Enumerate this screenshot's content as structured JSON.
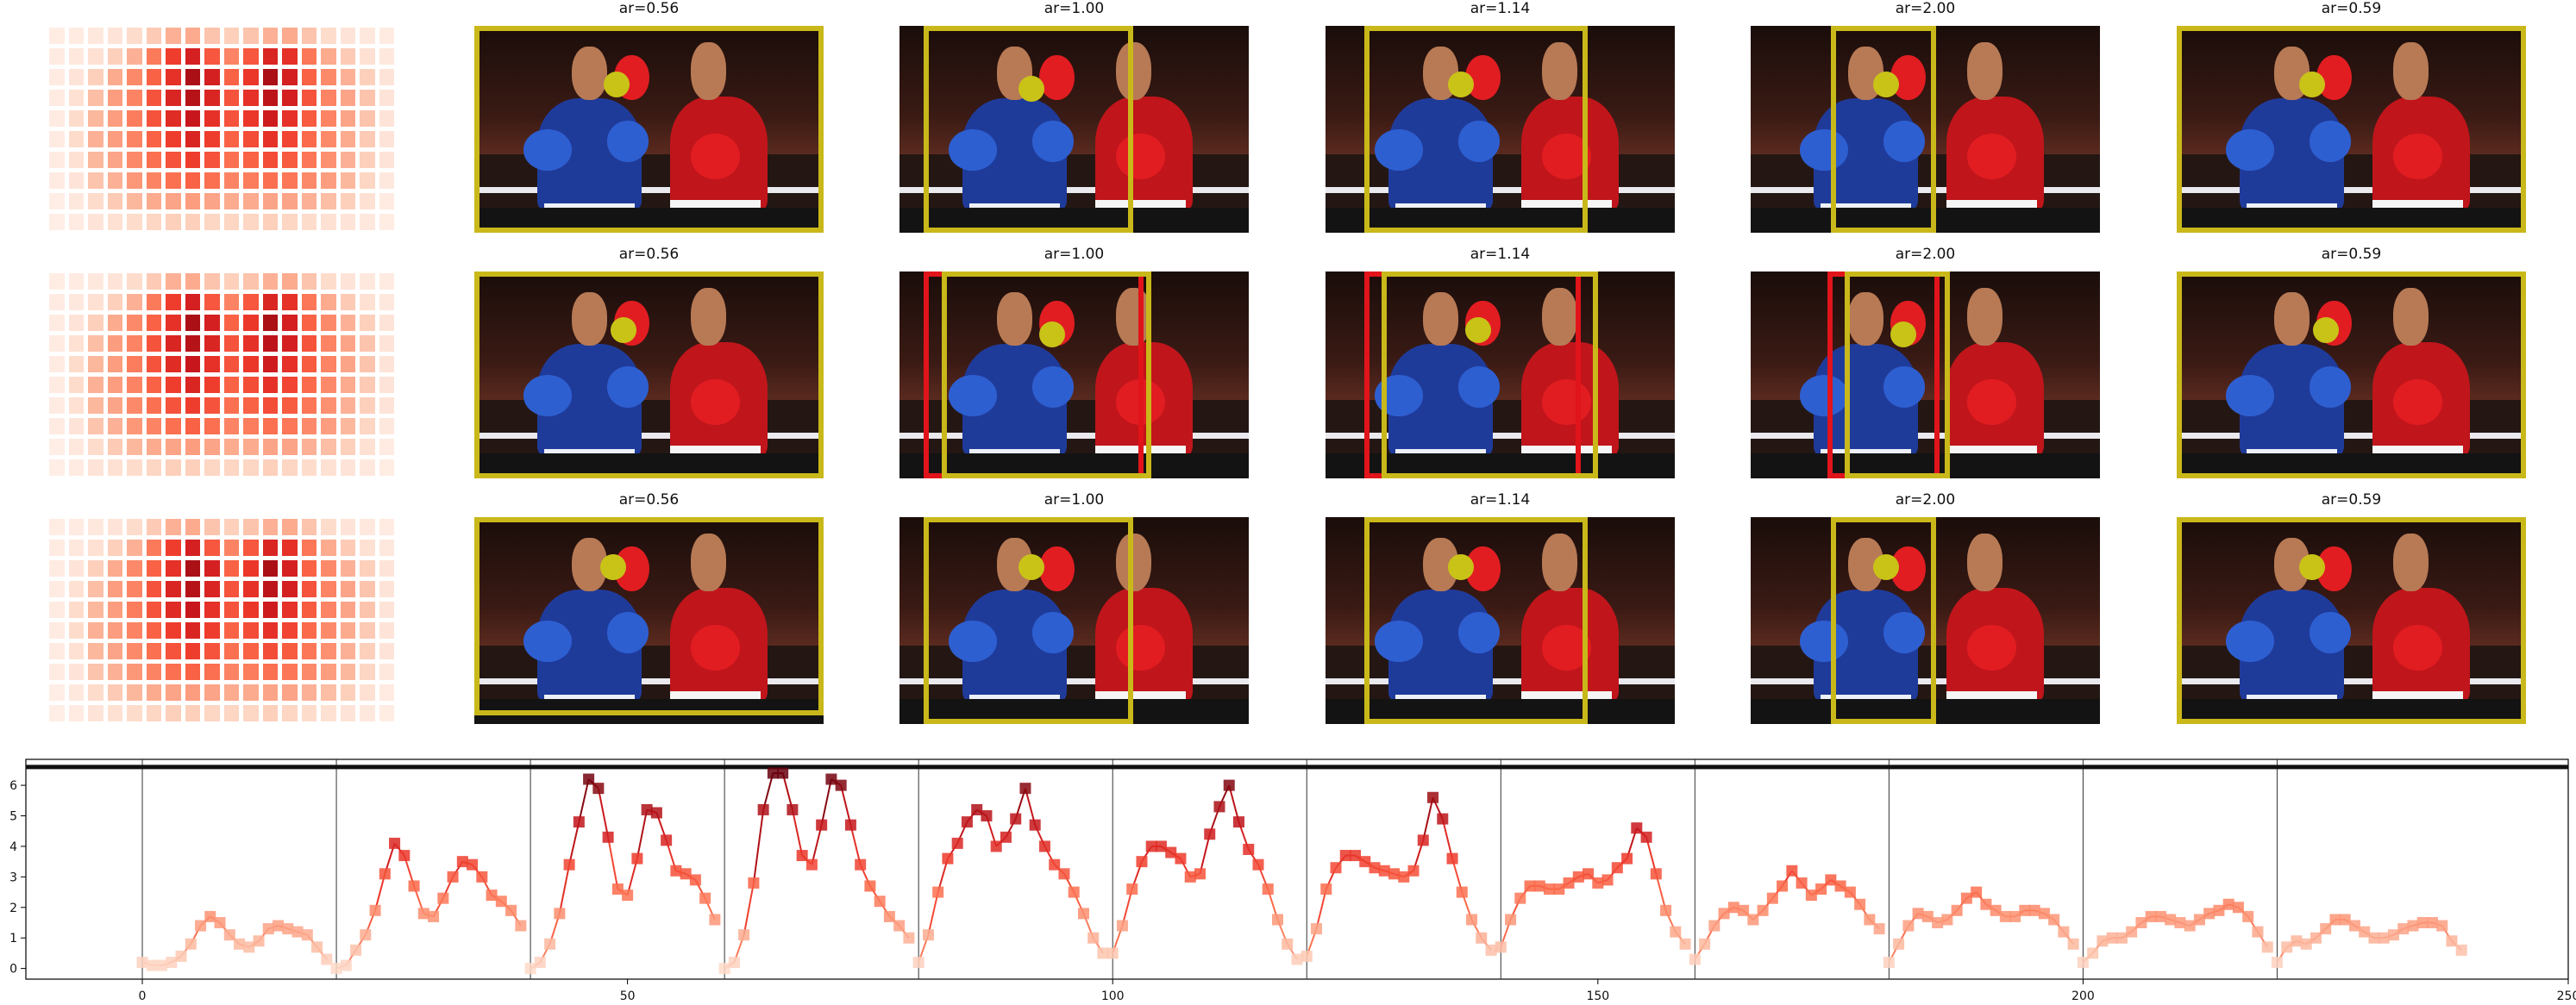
{
  "panel_titles": [
    [
      "ar=0.56",
      "ar=1.00",
      "ar=1.14",
      "ar=2.00",
      "ar=0.59"
    ],
    [
      "ar=0.56",
      "ar=1.00",
      "ar=1.14",
      "ar=2.00",
      "ar=0.59"
    ],
    [
      "ar=0.56",
      "ar=1.00",
      "ar=1.14",
      "ar=2.00",
      "ar=0.59"
    ]
  ],
  "colors": {
    "box_yellow": "#c9b81a",
    "box_red": "#e0141a",
    "dot_yellow": "#c9c317",
    "heatmap_scale": "Reds",
    "line_color": "#c0282d"
  },
  "chart_data": {
    "type": "line",
    "title": "",
    "xlabel": "",
    "ylabel": "",
    "xlim": [
      -12,
      250
    ],
    "ylim": [
      -0.35,
      6.85
    ],
    "x_ticks": [
      0,
      50,
      100,
      150,
      200,
      250
    ],
    "y_ticks": [
      0,
      1,
      2,
      3,
      4,
      5,
      6
    ],
    "vertical_lines": [
      0,
      20,
      40,
      60,
      80,
      100,
      120,
      140,
      160,
      180,
      200,
      220
    ],
    "horizontal_line": 6.6,
    "marker": "square",
    "series": [
      {
        "x": [
          0,
          1,
          2,
          3,
          4,
          5,
          6,
          7,
          8,
          9,
          10,
          11,
          12,
          13,
          14,
          15,
          16,
          17,
          18,
          19,
          20,
          21,
          22,
          23,
          24,
          25,
          26,
          27,
          28,
          29,
          30,
          31,
          32,
          33,
          34,
          35,
          36,
          37,
          38,
          39,
          40,
          41,
          42,
          43,
          44,
          45,
          46,
          47,
          48,
          49,
          50,
          51,
          52,
          53,
          54,
          55,
          56,
          57,
          58,
          59,
          60,
          61,
          62,
          63,
          64,
          65,
          66,
          67,
          68,
          69,
          70,
          71,
          72,
          73,
          74,
          75,
          76,
          77,
          78,
          79,
          80,
          81,
          82,
          83,
          84,
          85,
          86,
          87,
          88,
          89,
          90,
          91,
          92,
          93,
          94,
          95,
          96,
          97,
          98,
          99,
          100,
          101,
          102,
          103,
          104,
          105,
          106,
          107,
          108,
          109,
          110,
          111,
          112,
          113,
          114,
          115,
          116,
          117,
          118,
          119,
          120,
          121,
          122,
          123,
          124,
          125,
          126,
          127,
          128,
          129,
          130,
          131,
          132,
          133,
          134,
          135,
          136,
          137,
          138,
          139,
          140,
          141,
          142,
          143,
          144,
          145,
          146,
          147,
          148,
          149,
          150,
          151,
          152,
          153,
          154,
          155,
          156,
          157,
          158,
          159,
          160,
          161,
          162,
          163,
          164,
          165,
          166,
          167,
          168,
          169,
          170,
          171,
          172,
          173,
          174,
          175,
          176,
          177,
          178,
          179,
          180,
          181,
          182,
          183,
          184,
          185,
          186,
          187,
          188,
          189,
          190,
          191,
          192,
          193,
          194,
          195,
          196,
          197,
          198,
          199,
          200,
          201,
          202,
          203,
          204,
          205,
          206,
          207,
          208,
          209,
          210,
          211,
          212,
          213,
          214,
          215,
          216,
          217,
          218,
          219,
          220,
          221,
          222,
          223,
          224,
          225,
          226,
          227,
          228,
          229,
          230,
          231,
          232,
          233,
          234,
          235,
          236,
          237,
          238,
          239
        ],
        "y": [
          0.2,
          0.1,
          0.1,
          0.2,
          0.4,
          0.8,
          1.4,
          1.7,
          1.5,
          1.1,
          0.8,
          0.7,
          0.9,
          1.3,
          1.4,
          1.3,
          1.2,
          1.1,
          0.7,
          0.3,
          0.0,
          0.1,
          0.6,
          1.1,
          1.9,
          3.1,
          4.1,
          3.7,
          2.7,
          1.8,
          1.7,
          2.3,
          3.0,
          3.5,
          3.4,
          3.0,
          2.4,
          2.2,
          1.9,
          1.4,
          0.0,
          0.2,
          0.8,
          1.8,
          3.4,
          4.8,
          6.2,
          5.9,
          4.3,
          2.6,
          2.4,
          3.6,
          5.2,
          5.1,
          4.2,
          3.2,
          3.1,
          2.9,
          2.3,
          1.6,
          0.0,
          0.2,
          1.1,
          2.8,
          5.2,
          6.4,
          6.4,
          5.2,
          3.7,
          3.4,
          4.7,
          6.2,
          6.0,
          4.7,
          3.4,
          2.7,
          2.2,
          1.7,
          1.4,
          1.0,
          0.2,
          1.1,
          2.5,
          3.6,
          4.1,
          4.8,
          5.2,
          5.0,
          4.0,
          4.3,
          4.9,
          5.9,
          4.7,
          4.0,
          3.4,
          3.1,
          2.5,
          1.8,
          1.0,
          0.5,
          0.5,
          1.4,
          2.6,
          3.5,
          4.0,
          4.0,
          3.8,
          3.6,
          3.0,
          3.1,
          4.4,
          5.3,
          6.0,
          4.8,
          3.9,
          3.4,
          2.6,
          1.6,
          0.8,
          0.3,
          0.4,
          1.3,
          2.6,
          3.3,
          3.7,
          3.7,
          3.5,
          3.3,
          3.2,
          3.1,
          3.0,
          3.2,
          4.2,
          5.6,
          4.9,
          3.6,
          2.5,
          1.6,
          1.0,
          0.6,
          0.7,
          1.6,
          2.3,
          2.7,
          2.7,
          2.6,
          2.6,
          2.8,
          3.0,
          3.1,
          2.8,
          2.9,
          3.3,
          3.6,
          4.6,
          4.3,
          3.1,
          1.9,
          1.2,
          0.8,
          0.3,
          0.8,
          1.4,
          1.8,
          2.0,
          1.9,
          1.6,
          1.9,
          2.3,
          2.7,
          3.2,
          2.8,
          2.4,
          2.6,
          2.9,
          2.7,
          2.5,
          2.1,
          1.6,
          1.3,
          0.2,
          0.8,
          1.4,
          1.8,
          1.7,
          1.5,
          1.6,
          1.9,
          2.3,
          2.5,
          2.1,
          1.9,
          1.7,
          1.7,
          1.9,
          1.9,
          1.8,
          1.6,
          1.2,
          0.8,
          0.2,
          0.5,
          0.9,
          1.0,
          1.0,
          1.2,
          1.5,
          1.7,
          1.7,
          1.6,
          1.5,
          1.4,
          1.6,
          1.8,
          1.9,
          2.1,
          2.0,
          1.7,
          1.2,
          0.7,
          0.2,
          0.7,
          0.9,
          0.8,
          1.0,
          1.3,
          1.6,
          1.6,
          1.4,
          1.2,
          1.0,
          1.0,
          1.1,
          1.3,
          1.4,
          1.5,
          1.5,
          1.4,
          0.9,
          0.6
        ]
      }
    ],
    "heatmaps": [
      [
        [
          0.05,
          0.06,
          0.08,
          0.1,
          0.14,
          0.2,
          0.28,
          0.3,
          0.22,
          0.18,
          0.22,
          0.28,
          0.3,
          0.22,
          0.14,
          0.1,
          0.08,
          0.06
        ],
        [
          0.06,
          0.08,
          0.12,
          0.18,
          0.28,
          0.45,
          0.62,
          0.72,
          0.55,
          0.42,
          0.55,
          0.7,
          0.66,
          0.46,
          0.3,
          0.2,
          0.12,
          0.08
        ],
        [
          0.06,
          0.1,
          0.18,
          0.3,
          0.4,
          0.52,
          0.66,
          0.86,
          0.72,
          0.52,
          0.64,
          0.86,
          0.72,
          0.52,
          0.4,
          0.28,
          0.18,
          0.1
        ],
        [
          0.06,
          0.12,
          0.24,
          0.34,
          0.42,
          0.56,
          0.7,
          0.82,
          0.7,
          0.56,
          0.66,
          0.8,
          0.72,
          0.56,
          0.42,
          0.32,
          0.22,
          0.1
        ],
        [
          0.06,
          0.14,
          0.26,
          0.34,
          0.44,
          0.56,
          0.68,
          0.76,
          0.66,
          0.56,
          0.64,
          0.74,
          0.66,
          0.54,
          0.42,
          0.32,
          0.22,
          0.1
        ],
        [
          0.06,
          0.14,
          0.28,
          0.34,
          0.42,
          0.52,
          0.62,
          0.7,
          0.62,
          0.52,
          0.58,
          0.66,
          0.6,
          0.5,
          0.4,
          0.3,
          0.2,
          0.1
        ],
        [
          0.06,
          0.12,
          0.26,
          0.32,
          0.4,
          0.48,
          0.56,
          0.62,
          0.56,
          0.48,
          0.52,
          0.58,
          0.54,
          0.46,
          0.38,
          0.28,
          0.18,
          0.1
        ],
        [
          0.06,
          0.1,
          0.22,
          0.28,
          0.36,
          0.42,
          0.48,
          0.52,
          0.48,
          0.42,
          0.44,
          0.48,
          0.46,
          0.4,
          0.34,
          0.26,
          0.16,
          0.08
        ],
        [
          0.04,
          0.08,
          0.14,
          0.2,
          0.26,
          0.3,
          0.32,
          0.34,
          0.32,
          0.3,
          0.3,
          0.32,
          0.32,
          0.28,
          0.24,
          0.18,
          0.12,
          0.06
        ],
        [
          0.04,
          0.06,
          0.1,
          0.12,
          0.14,
          0.16,
          0.18,
          0.18,
          0.16,
          0.16,
          0.16,
          0.18,
          0.16,
          0.14,
          0.12,
          0.1,
          0.08,
          0.05
        ]
      ],
      [
        [
          0.05,
          0.06,
          0.08,
          0.1,
          0.14,
          0.2,
          0.28,
          0.3,
          0.22,
          0.18,
          0.22,
          0.28,
          0.3,
          0.22,
          0.14,
          0.1,
          0.08,
          0.06
        ],
        [
          0.06,
          0.08,
          0.12,
          0.18,
          0.28,
          0.45,
          0.62,
          0.72,
          0.55,
          0.42,
          0.55,
          0.7,
          0.66,
          0.46,
          0.3,
          0.2,
          0.12,
          0.08
        ],
        [
          0.06,
          0.1,
          0.18,
          0.3,
          0.4,
          0.52,
          0.66,
          0.86,
          0.72,
          0.52,
          0.64,
          0.86,
          0.72,
          0.52,
          0.4,
          0.28,
          0.18,
          0.1
        ],
        [
          0.06,
          0.12,
          0.24,
          0.34,
          0.42,
          0.56,
          0.7,
          0.82,
          0.7,
          0.56,
          0.66,
          0.8,
          0.72,
          0.56,
          0.42,
          0.32,
          0.22,
          0.1
        ],
        [
          0.06,
          0.14,
          0.26,
          0.34,
          0.44,
          0.56,
          0.68,
          0.76,
          0.66,
          0.56,
          0.64,
          0.74,
          0.66,
          0.54,
          0.42,
          0.32,
          0.22,
          0.1
        ],
        [
          0.06,
          0.14,
          0.28,
          0.34,
          0.42,
          0.52,
          0.62,
          0.7,
          0.62,
          0.52,
          0.58,
          0.66,
          0.6,
          0.5,
          0.4,
          0.3,
          0.2,
          0.1
        ],
        [
          0.06,
          0.12,
          0.26,
          0.32,
          0.4,
          0.48,
          0.56,
          0.62,
          0.56,
          0.48,
          0.52,
          0.58,
          0.54,
          0.46,
          0.38,
          0.28,
          0.18,
          0.1
        ],
        [
          0.06,
          0.1,
          0.22,
          0.28,
          0.36,
          0.42,
          0.48,
          0.52,
          0.48,
          0.42,
          0.44,
          0.48,
          0.46,
          0.4,
          0.34,
          0.26,
          0.16,
          0.08
        ],
        [
          0.04,
          0.08,
          0.14,
          0.2,
          0.26,
          0.3,
          0.32,
          0.34,
          0.32,
          0.3,
          0.3,
          0.32,
          0.32,
          0.28,
          0.24,
          0.18,
          0.12,
          0.06
        ],
        [
          0.04,
          0.06,
          0.1,
          0.12,
          0.14,
          0.16,
          0.18,
          0.18,
          0.16,
          0.16,
          0.16,
          0.18,
          0.16,
          0.14,
          0.12,
          0.1,
          0.08,
          0.05
        ]
      ],
      [
        [
          0.05,
          0.06,
          0.08,
          0.1,
          0.14,
          0.2,
          0.28,
          0.3,
          0.22,
          0.18,
          0.22,
          0.28,
          0.3,
          0.22,
          0.14,
          0.1,
          0.08,
          0.06
        ],
        [
          0.06,
          0.08,
          0.12,
          0.18,
          0.28,
          0.45,
          0.62,
          0.72,
          0.55,
          0.42,
          0.55,
          0.7,
          0.66,
          0.46,
          0.3,
          0.2,
          0.12,
          0.08
        ],
        [
          0.06,
          0.1,
          0.18,
          0.3,
          0.4,
          0.52,
          0.66,
          0.86,
          0.72,
          0.52,
          0.64,
          0.86,
          0.72,
          0.52,
          0.4,
          0.28,
          0.18,
          0.1
        ],
        [
          0.06,
          0.12,
          0.24,
          0.34,
          0.42,
          0.56,
          0.7,
          0.82,
          0.7,
          0.56,
          0.66,
          0.8,
          0.72,
          0.56,
          0.42,
          0.32,
          0.22,
          0.1
        ],
        [
          0.06,
          0.14,
          0.26,
          0.34,
          0.44,
          0.56,
          0.68,
          0.76,
          0.66,
          0.56,
          0.64,
          0.74,
          0.66,
          0.54,
          0.42,
          0.32,
          0.22,
          0.1
        ],
        [
          0.06,
          0.14,
          0.28,
          0.34,
          0.42,
          0.52,
          0.62,
          0.7,
          0.62,
          0.52,
          0.58,
          0.66,
          0.6,
          0.5,
          0.4,
          0.3,
          0.2,
          0.1
        ],
        [
          0.06,
          0.12,
          0.26,
          0.32,
          0.4,
          0.48,
          0.56,
          0.62,
          0.56,
          0.48,
          0.52,
          0.58,
          0.54,
          0.46,
          0.38,
          0.28,
          0.18,
          0.1
        ],
        [
          0.06,
          0.1,
          0.22,
          0.28,
          0.36,
          0.42,
          0.48,
          0.52,
          0.48,
          0.42,
          0.44,
          0.48,
          0.46,
          0.4,
          0.34,
          0.26,
          0.16,
          0.08
        ],
        [
          0.04,
          0.08,
          0.14,
          0.2,
          0.26,
          0.3,
          0.32,
          0.34,
          0.32,
          0.3,
          0.3,
          0.32,
          0.32,
          0.28,
          0.24,
          0.18,
          0.12,
          0.06
        ],
        [
          0.04,
          0.06,
          0.1,
          0.12,
          0.14,
          0.16,
          0.18,
          0.18,
          0.16,
          0.16,
          0.16,
          0.18,
          0.16,
          0.14,
          0.12,
          0.1,
          0.08,
          0.05
        ]
      ]
    ]
  }
}
